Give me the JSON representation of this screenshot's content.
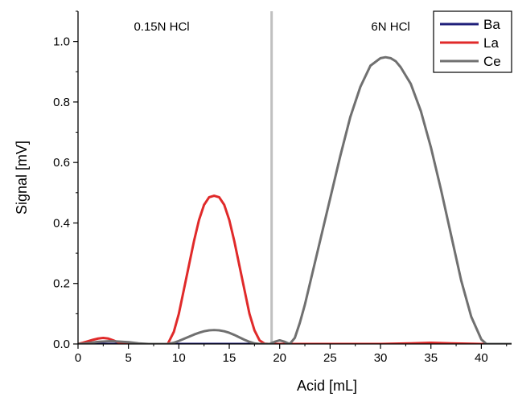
{
  "chart_data": {
    "type": "line",
    "xlabel": "Acid [mL]",
    "ylabel": "Signal [mV]",
    "xlim": [
      0,
      43
    ],
    "ylim": [
      0,
      1.1
    ],
    "xticks": [
      "0",
      "5",
      "10",
      "15",
      "20",
      "25",
      "30",
      "35",
      "40"
    ],
    "yticks": [
      "0.0",
      "0.2",
      "0.4",
      "0.6",
      "0.8",
      "1.0"
    ],
    "grid": false,
    "legend_position": "top-right",
    "annotations": [
      {
        "text": "0.15N HCl",
        "x": 8.3,
        "y": 1.05
      },
      {
        "text": "6N HCl",
        "x": 31,
        "y": 1.05
      }
    ],
    "vertical_line": {
      "x": 19.2,
      "color": "#c0c0c0"
    },
    "series": [
      {
        "name": "Ba",
        "color": "#1f1f7a",
        "x": [
          0,
          5,
          10,
          15,
          20,
          25,
          30,
          35,
          40,
          43
        ],
        "y": [
          0,
          0,
          0,
          0,
          0,
          0,
          0,
          0,
          0,
          0
        ]
      },
      {
        "name": "La",
        "color": "#e02a2a",
        "x": [
          0,
          0.5,
          1,
          1.5,
          2,
          2.5,
          3,
          3.5,
          4,
          4.5,
          5,
          8.9,
          9.5,
          10,
          10.5,
          11,
          11.5,
          12,
          12.5,
          13,
          13.5,
          14,
          14.5,
          15,
          15.5,
          16,
          16.5,
          17,
          17.5,
          18,
          18.5,
          19,
          25,
          30,
          33,
          35,
          37,
          40,
          43
        ],
        "y": [
          0,
          0.004,
          0.009,
          0.014,
          0.018,
          0.02,
          0.018,
          0.012,
          0.005,
          0.001,
          0,
          0,
          0.04,
          0.1,
          0.18,
          0.26,
          0.34,
          0.41,
          0.46,
          0.485,
          0.49,
          0.485,
          0.46,
          0.41,
          0.34,
          0.26,
          0.18,
          0.1,
          0.045,
          0.012,
          0.001,
          0,
          0,
          0,
          0.002,
          0.004,
          0.002,
          0,
          0
        ]
      },
      {
        "name": "Ce",
        "color": "#707070",
        "x": [
          0,
          0.5,
          1,
          1.5,
          2,
          2.5,
          3,
          3.5,
          4,
          4.5,
          5,
          5.5,
          6,
          6.5,
          7,
          8.9,
          9.5,
          10,
          10.5,
          11,
          11.5,
          12,
          12.5,
          13,
          13.5,
          14,
          14.5,
          15,
          15.5,
          16,
          16.5,
          17,
          17.5,
          18,
          18.5,
          19,
          19.5,
          20,
          20.5,
          21,
          21.5,
          22,
          22.5,
          23,
          24,
          25,
          26,
          27,
          28,
          29,
          30,
          30.5,
          31,
          31.5,
          32,
          33,
          34,
          35,
          36,
          37,
          38,
          39,
          40,
          40.5,
          43
        ],
        "y": [
          0,
          0.001,
          0.003,
          0.005,
          0.007,
          0.008,
          0.009,
          0.009,
          0.008,
          0.007,
          0.006,
          0.004,
          0.002,
          0.001,
          0,
          0,
          0.004,
          0.01,
          0.017,
          0.024,
          0.031,
          0.037,
          0.042,
          0.045,
          0.046,
          0.045,
          0.042,
          0.037,
          0.03,
          0.022,
          0.014,
          0.007,
          0.002,
          0,
          0,
          0,
          0.007,
          0.012,
          0.007,
          0,
          0.02,
          0.07,
          0.13,
          0.2,
          0.34,
          0.48,
          0.62,
          0.75,
          0.85,
          0.92,
          0.945,
          0.948,
          0.945,
          0.935,
          0.915,
          0.86,
          0.77,
          0.65,
          0.51,
          0.36,
          0.21,
          0.09,
          0.015,
          0,
          0
        ]
      }
    ]
  }
}
